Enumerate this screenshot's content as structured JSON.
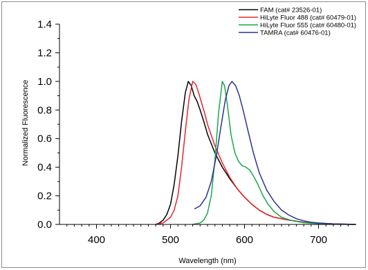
{
  "chart_data": {
    "type": "line",
    "xlabel": "Wavelength (nm)",
    "ylabel": "Normalized Fluorescence",
    "xlim": [
      350,
      750
    ],
    "ylim": [
      0,
      1.4
    ],
    "x_ticks": [
      400,
      500,
      600,
      700
    ],
    "x_tick_labels": [
      "400",
      "500",
      "600",
      "700"
    ],
    "y_ticks": [
      0,
      0.2,
      0.4,
      0.6,
      0.8,
      1.0,
      1.2,
      1.4
    ],
    "y_tick_labels": [
      "0.0",
      "0.2",
      "0.4",
      "0.6",
      "0.8",
      "1.0",
      "1.2",
      "1.4"
    ],
    "grid": false,
    "legend_position": "top-right",
    "series": [
      {
        "name": "FAM (cat# 23526-01)",
        "color": "#000000",
        "points": [
          [
            480,
            0
          ],
          [
            485,
            0.01
          ],
          [
            490,
            0.03
          ],
          [
            495,
            0.07
          ],
          [
            500,
            0.14
          ],
          [
            505,
            0.28
          ],
          [
            510,
            0.48
          ],
          [
            515,
            0.72
          ],
          [
            520,
            0.92
          ],
          [
            524,
            1.0
          ],
          [
            528,
            0.97
          ],
          [
            532,
            0.9
          ],
          [
            536,
            0.86
          ],
          [
            540,
            0.8
          ],
          [
            545,
            0.72
          ],
          [
            550,
            0.63
          ],
          [
            560,
            0.5
          ],
          [
            570,
            0.4
          ],
          [
            580,
            0.32
          ],
          [
            590,
            0.25
          ],
          [
            600,
            0.19
          ],
          [
            610,
            0.14
          ],
          [
            620,
            0.1
          ],
          [
            630,
            0.07
          ],
          [
            640,
            0.05
          ],
          [
            660,
            0.03
          ],
          [
            680,
            0.015
          ],
          [
            700,
            0.008
          ],
          [
            720,
            0.004
          ],
          [
            750,
            0
          ]
        ]
      },
      {
        "name": "HiLyte Fluor 488 (cat# 60479-01)",
        "color": "#e8242a",
        "points": [
          [
            480,
            0
          ],
          [
            490,
            0.01
          ],
          [
            500,
            0.05
          ],
          [
            505,
            0.1
          ],
          [
            510,
            0.2
          ],
          [
            515,
            0.4
          ],
          [
            520,
            0.65
          ],
          [
            525,
            0.88
          ],
          [
            530,
            1.0
          ],
          [
            534,
            0.98
          ],
          [
            538,
            0.92
          ],
          [
            542,
            0.85
          ],
          [
            546,
            0.78
          ],
          [
            550,
            0.7
          ],
          [
            560,
            0.55
          ],
          [
            570,
            0.43
          ],
          [
            580,
            0.33
          ],
          [
            590,
            0.25
          ],
          [
            600,
            0.19
          ],
          [
            610,
            0.14
          ],
          [
            620,
            0.1
          ],
          [
            630,
            0.07
          ],
          [
            640,
            0.05
          ],
          [
            660,
            0.03
          ],
          [
            680,
            0.015
          ],
          [
            700,
            0.008
          ],
          [
            720,
            0.004
          ],
          [
            750,
            0
          ]
        ]
      },
      {
        "name": "HiLyte Fluor 555 (cat# 60480-01)",
        "color": "#1aa64a",
        "points": [
          [
            530,
            0
          ],
          [
            540,
            0.01
          ],
          [
            545,
            0.03
          ],
          [
            550,
            0.08
          ],
          [
            555,
            0.2
          ],
          [
            560,
            0.45
          ],
          [
            565,
            0.78
          ],
          [
            570,
            1.0
          ],
          [
            573,
            0.97
          ],
          [
            577,
            0.83
          ],
          [
            582,
            0.62
          ],
          [
            587,
            0.5
          ],
          [
            592,
            0.44
          ],
          [
            597,
            0.41
          ],
          [
            602,
            0.4
          ],
          [
            607,
            0.38
          ],
          [
            612,
            0.34
          ],
          [
            618,
            0.28
          ],
          [
            625,
            0.2
          ],
          [
            632,
            0.14
          ],
          [
            640,
            0.09
          ],
          [
            650,
            0.05
          ],
          [
            665,
            0.025
          ],
          [
            680,
            0.012
          ],
          [
            700,
            0.005
          ],
          [
            720,
            0.002
          ],
          [
            750,
            0
          ]
        ]
      },
      {
        "name": "TAMRA (cat# 60476-01)",
        "color": "#2e3192",
        "points": [
          [
            533,
            0.11
          ],
          [
            540,
            0.13
          ],
          [
            548,
            0.19
          ],
          [
            555,
            0.3
          ],
          [
            562,
            0.48
          ],
          [
            568,
            0.68
          ],
          [
            574,
            0.87
          ],
          [
            579,
            0.97
          ],
          [
            583,
            1.0
          ],
          [
            588,
            0.97
          ],
          [
            593,
            0.9
          ],
          [
            598,
            0.8
          ],
          [
            605,
            0.65
          ],
          [
            612,
            0.5
          ],
          [
            620,
            0.36
          ],
          [
            630,
            0.24
          ],
          [
            640,
            0.16
          ],
          [
            650,
            0.1
          ],
          [
            660,
            0.065
          ],
          [
            670,
            0.04
          ],
          [
            680,
            0.025
          ],
          [
            690,
            0.015
          ],
          [
            700,
            0.01
          ],
          [
            720,
            0.004
          ],
          [
            750,
            0
          ]
        ]
      }
    ]
  }
}
